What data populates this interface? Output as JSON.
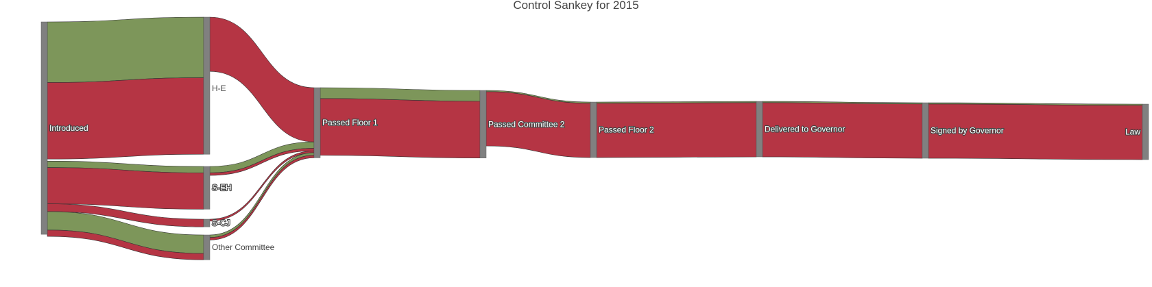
{
  "chart_data": {
    "type": "sankey",
    "title": "Control Sankey for 2015",
    "colors": {
      "node": "#808080",
      "passed": "#7d965a",
      "failed": "#b53544",
      "text": "#444444"
    },
    "nodes": [
      {
        "id": "introduced",
        "label": "Introduced"
      },
      {
        "id": "he",
        "label": "H-E"
      },
      {
        "id": "seh",
        "label": "S-EH"
      },
      {
        "id": "scj",
        "label": "S-CJ"
      },
      {
        "id": "other",
        "label": "Other Committee"
      },
      {
        "id": "pf1",
        "label": "Passed Floor 1"
      },
      {
        "id": "pc2",
        "label": "Passed Committee 2"
      },
      {
        "id": "pf2",
        "label": "Passed Floor 2"
      },
      {
        "id": "dtg",
        "label": "Delivered to Governor"
      },
      {
        "id": "sbg",
        "label": "Signed by Governor"
      },
      {
        "id": "law",
        "label": "Law"
      }
    ],
    "links": [
      {
        "source": "introduced",
        "target": "he",
        "group": "passed",
        "value": 95
      },
      {
        "source": "introduced",
        "target": "he",
        "group": "failed",
        "value": 120
      },
      {
        "source": "introduced",
        "target": "seh",
        "group": "passed",
        "value": 10
      },
      {
        "source": "introduced",
        "target": "seh",
        "group": "failed",
        "value": 57
      },
      {
        "source": "introduced",
        "target": "scj",
        "group": "failed",
        "value": 12
      },
      {
        "source": "introduced",
        "target": "other",
        "group": "passed",
        "value": 29
      },
      {
        "source": "introduced",
        "target": "other",
        "group": "failed",
        "value": 10
      },
      {
        "source": "he",
        "target": "pf1",
        "group": "passed",
        "value": 0
      },
      {
        "source": "he",
        "target": "pf1",
        "group": "failed",
        "value": 85
      },
      {
        "source": "seh",
        "target": "pf1",
        "group": "passed",
        "value": 10
      },
      {
        "source": "seh",
        "target": "pf1",
        "group": "failed",
        "value": 4
      },
      {
        "source": "scj",
        "target": "pf1",
        "group": "failed",
        "value": 3
      },
      {
        "source": "other",
        "target": "pf1",
        "group": "passed",
        "value": 4
      },
      {
        "source": "other",
        "target": "pf1",
        "group": "failed",
        "value": 4
      },
      {
        "source": "pf1",
        "target": "pc2",
        "group": "passed",
        "value": 17
      },
      {
        "source": "pf1",
        "target": "pc2",
        "group": "failed",
        "value": 89
      },
      {
        "source": "pc2",
        "target": "pf2",
        "group": "passed",
        "value": 2
      },
      {
        "source": "pc2",
        "target": "pf2",
        "group": "failed",
        "value": 85
      },
      {
        "source": "pf2",
        "target": "dtg",
        "group": "passed",
        "value": 2
      },
      {
        "source": "pf2",
        "target": "dtg",
        "group": "failed",
        "value": 85
      },
      {
        "source": "dtg",
        "target": "sbg",
        "group": "passed",
        "value": 2
      },
      {
        "source": "dtg",
        "target": "sbg",
        "group": "failed",
        "value": 85
      },
      {
        "source": "sbg",
        "target": "law",
        "group": "passed",
        "value": 2
      },
      {
        "source": "sbg",
        "target": "law",
        "group": "failed",
        "value": 85
      }
    ]
  }
}
